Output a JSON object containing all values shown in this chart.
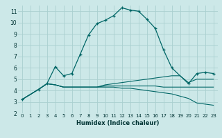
{
  "xlabel": "Humidex (Indice chaleur)",
  "bg_color": "#cce8e8",
  "grid_color": "#aad0d0",
  "line_color": "#006666",
  "xlim": [
    -0.5,
    23.5
  ],
  "ylim": [
    2,
    11.5
  ],
  "xticks": [
    0,
    1,
    2,
    3,
    4,
    5,
    6,
    7,
    8,
    9,
    10,
    11,
    12,
    13,
    14,
    15,
    16,
    17,
    18,
    19,
    20,
    21,
    22,
    23
  ],
  "yticks": [
    2,
    3,
    4,
    5,
    6,
    7,
    8,
    9,
    10,
    11
  ],
  "series": [
    {
      "x": [
        0,
        2,
        3,
        4,
        5,
        6,
        7,
        8,
        9,
        10,
        11,
        12,
        13,
        14,
        15,
        16,
        17,
        18,
        20,
        21,
        22,
        23
      ],
      "y": [
        3.2,
        4.1,
        4.6,
        6.1,
        5.3,
        5.5,
        7.2,
        8.9,
        9.9,
        10.2,
        10.6,
        11.3,
        11.1,
        11.0,
        10.3,
        9.5,
        7.6,
        6.0,
        4.6,
        5.5,
        5.6,
        5.5
      ],
      "marker": true
    },
    {
      "x": [
        0,
        2,
        3,
        4,
        5,
        6,
        7,
        8,
        9,
        10,
        11,
        12,
        13,
        14,
        15,
        16,
        17,
        18,
        19,
        20,
        21,
        22,
        23
      ],
      "y": [
        3.2,
        4.1,
        4.6,
        4.5,
        4.3,
        4.3,
        4.3,
        4.3,
        4.3,
        4.5,
        4.6,
        4.7,
        4.8,
        4.9,
        5.0,
        5.1,
        5.2,
        5.3,
        5.3,
        4.7,
        5.0,
        5.0,
        5.0
      ],
      "marker": false
    },
    {
      "x": [
        0,
        2,
        3,
        4,
        5,
        6,
        7,
        8,
        9,
        10,
        11,
        12,
        13,
        14,
        15,
        16,
        17,
        18,
        19,
        20,
        21,
        22,
        23
      ],
      "y": [
        3.2,
        4.1,
        4.6,
        4.5,
        4.3,
        4.3,
        4.3,
        4.3,
        4.3,
        4.3,
        4.3,
        4.2,
        4.2,
        4.1,
        4.0,
        3.9,
        3.8,
        3.7,
        3.5,
        3.3,
        2.9,
        2.8,
        2.7
      ],
      "marker": false
    },
    {
      "x": [
        0,
        2,
        3,
        4,
        5,
        6,
        7,
        8,
        9,
        10,
        11,
        12,
        13,
        14,
        15,
        16,
        17,
        18,
        19,
        20,
        21,
        22,
        23
      ],
      "y": [
        3.2,
        4.1,
        4.6,
        4.5,
        4.3,
        4.3,
        4.3,
        4.3,
        4.3,
        4.4,
        4.4,
        4.4,
        4.4,
        4.4,
        4.4,
        4.4,
        4.3,
        4.3,
        4.3,
        4.3,
        4.3,
        4.3,
        4.3
      ],
      "marker": false
    }
  ]
}
